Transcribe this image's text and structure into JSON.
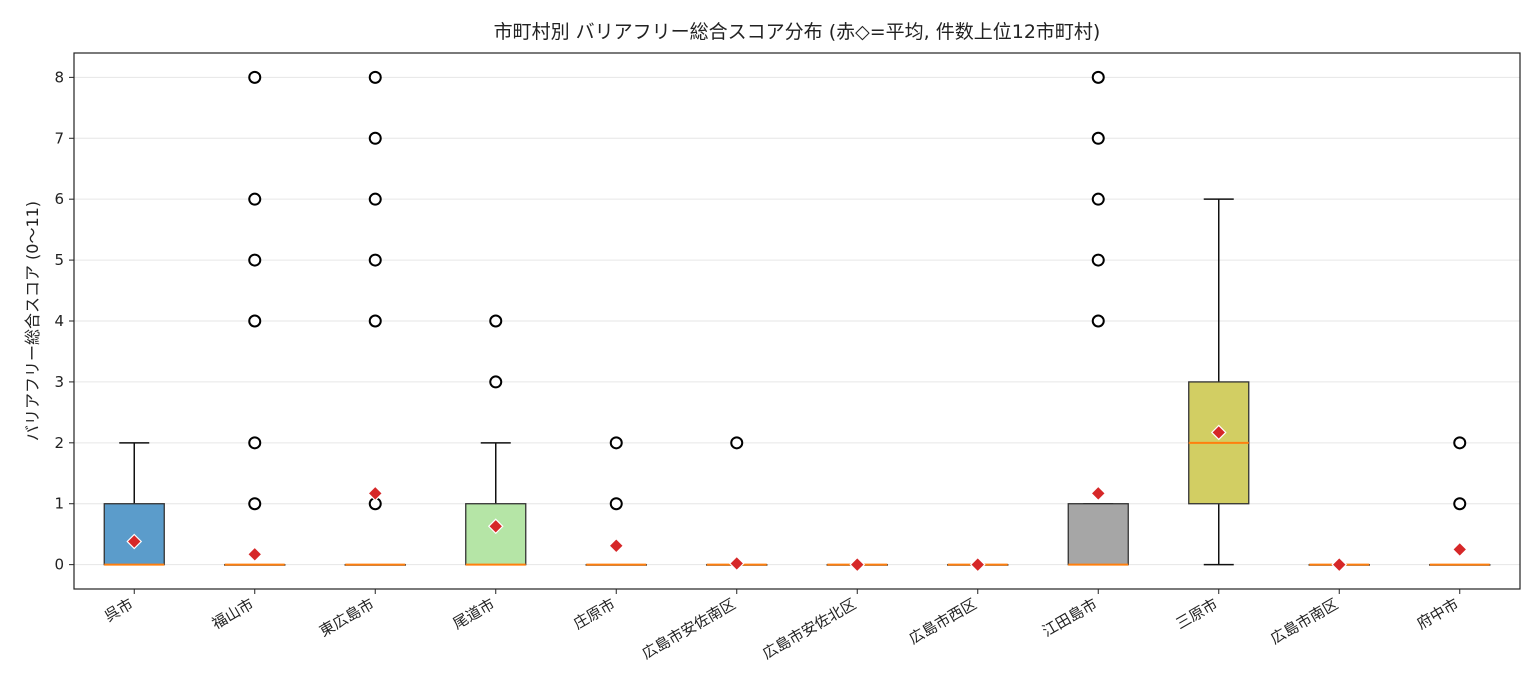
{
  "chart_data": {
    "type": "box",
    "title": "市町村別 バリアフリー総合スコア分布 (赤◇=平均, 件数上位12市町村)",
    "xlabel": "",
    "ylabel": "バリアフリー総合スコア (0〜11)",
    "ylim": [
      -0.4,
      8.4
    ],
    "yticks": [
      0,
      1,
      2,
      3,
      4,
      5,
      6,
      7,
      8
    ],
    "grid": "horizontal",
    "categories": [
      "呉市",
      "福山市",
      "東広島市",
      "尾道市",
      "庄原市",
      "広島市安佐南区",
      "広島市安佐北区",
      "広島市西区",
      "江田島市",
      "三原市",
      "広島市南区",
      "府中市"
    ],
    "boxes": [
      {
        "name": "呉市",
        "q1": 0,
        "median": 0,
        "q3": 1,
        "whisker_low": 0,
        "whisker_high": 2,
        "mean": 0.38,
        "outliers": [],
        "color": "#5b9ccb"
      },
      {
        "name": "福山市",
        "q1": 0,
        "median": 0,
        "q3": 0,
        "whisker_low": 0,
        "whisker_high": 0,
        "mean": 0.17,
        "outliers": [
          1,
          2,
          4,
          5,
          6,
          8
        ],
        "color": "#d62728"
      },
      {
        "name": "東広島市",
        "q1": 0,
        "median": 0,
        "q3": 0,
        "whisker_low": 0,
        "whisker_high": 0,
        "mean": 1.17,
        "outliers": [
          1,
          4,
          5,
          6,
          7,
          8
        ],
        "color": "#ff7f0e"
      },
      {
        "name": "尾道市",
        "q1": 0,
        "median": 0,
        "q3": 1,
        "whisker_low": 0,
        "whisker_high": 2,
        "mean": 0.63,
        "outliers": [
          3,
          4
        ],
        "color": "#b5e5a6"
      },
      {
        "name": "庄原市",
        "q1": 0,
        "median": 0,
        "q3": 0,
        "whisker_low": 0,
        "whisker_high": 0,
        "mean": 0.31,
        "outliers": [
          1,
          2
        ],
        "color": "#2ca02c"
      },
      {
        "name": "広島市安佐南区",
        "q1": 0,
        "median": 0,
        "q3": 0,
        "whisker_low": 0,
        "whisker_high": 0,
        "mean": 0.02,
        "outliers": [
          2
        ],
        "color": "#9467bd"
      },
      {
        "name": "広島市安佐北区",
        "q1": 0,
        "median": 0,
        "q3": 0,
        "whisker_low": 0,
        "whisker_high": 0,
        "mean": 0.0,
        "outliers": [],
        "color": "#8c564b"
      },
      {
        "name": "広島市西区",
        "q1": 0,
        "median": 0,
        "q3": 0,
        "whisker_low": 0,
        "whisker_high": 0,
        "mean": 0.0,
        "outliers": [],
        "color": "#e377c2"
      },
      {
        "name": "江田島市",
        "q1": 0,
        "median": 0,
        "q3": 1,
        "whisker_low": 0,
        "whisker_high": 1,
        "mean": 1.17,
        "outliers": [
          4,
          5,
          6,
          7,
          8
        ],
        "color": "#a6a6a6"
      },
      {
        "name": "三原市",
        "q1": 1,
        "median": 2,
        "q3": 3,
        "whisker_low": 0,
        "whisker_high": 6,
        "mean": 2.17,
        "outliers": [],
        "color": "#d2ce63"
      },
      {
        "name": "広島市南区",
        "q1": 0,
        "median": 0,
        "q3": 0,
        "whisker_low": 0,
        "whisker_high": 0,
        "mean": 0.0,
        "outliers": [],
        "color": "#17becf"
      },
      {
        "name": "府中市",
        "q1": 0,
        "median": 0,
        "q3": 0,
        "whisker_low": 0,
        "whisker_high": 0,
        "mean": 0.25,
        "outliers": [
          1,
          2
        ],
        "color": "#1f77b4"
      }
    ]
  }
}
